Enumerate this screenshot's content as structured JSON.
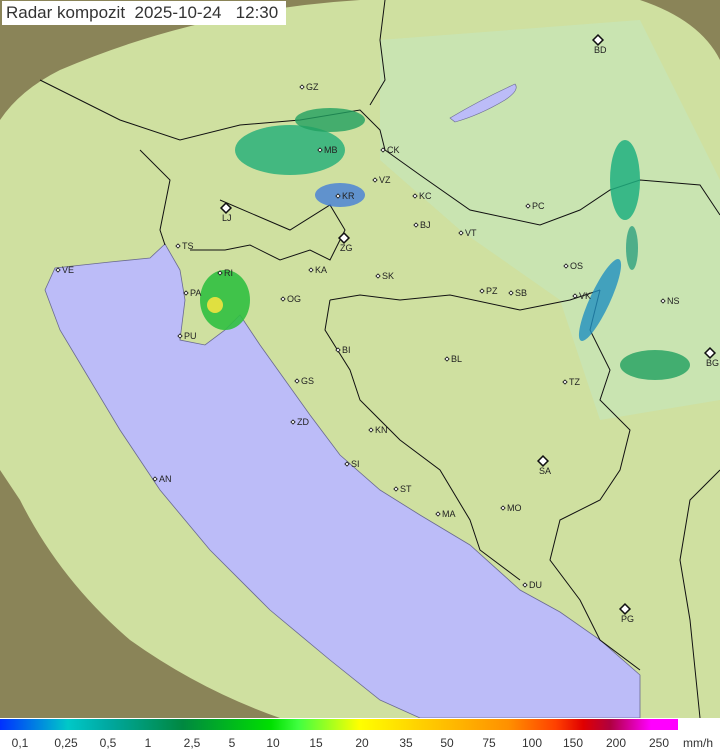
{
  "title": {
    "label": "Radar kompozit",
    "date": "2025-10-24",
    "time": "12:30"
  },
  "legend": {
    "unit": "mm/h",
    "ticks": [
      "0,1",
      "0,25",
      "0,5",
      "1",
      "2,5",
      "5",
      "10",
      "15",
      "20",
      "35",
      "50",
      "75",
      "100",
      "150",
      "200",
      "250"
    ],
    "colors": [
      "#0030ff",
      "#00c8c8",
      "#008840",
      "#00e000",
      "#ffff00",
      "#ff9000",
      "#e00000",
      "#ff00ff"
    ]
  },
  "map": {
    "land_color": "#d8e6a8",
    "sea_color": "#bcbcf8",
    "outside_coverage_color": "#7a7a50",
    "cities": [
      "GZ",
      "BD",
      "MB",
      "CK",
      "VZ",
      "KR",
      "LJ",
      "KC",
      "PC",
      "ZG",
      "BJ",
      "VT",
      "TS",
      "VE",
      "KA",
      "SK",
      "OS",
      "RI",
      "PA",
      "OG",
      "PZ",
      "SB",
      "VK",
      "NS",
      "PU",
      "BI",
      "BL",
      "BG",
      "TZ",
      "GS",
      "ZD",
      "KN",
      "SA",
      "SI",
      "AN",
      "ST",
      "MA",
      "MO",
      "DU",
      "PG"
    ],
    "capitals": [
      "BD",
      "LJ",
      "ZG",
      "BG",
      "SA",
      "PG"
    ]
  }
}
